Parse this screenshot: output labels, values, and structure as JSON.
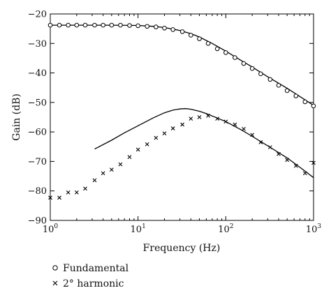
{
  "chart_data": {
    "type": "line",
    "title": "",
    "xlabel": "Frequency (Hz)",
    "ylabel": "Gain (dB)",
    "xscale": "log",
    "xlim": [
      1,
      1000
    ],
    "ylim": [
      -90,
      -20
    ],
    "grid": false,
    "legend_position": "bottom-left",
    "x_ticks": [
      {
        "value": 1,
        "base": "10",
        "exp": "0"
      },
      {
        "value": 10,
        "base": "10",
        "exp": "1"
      },
      {
        "value": 100,
        "base": "10",
        "exp": "2"
      },
      {
        "value": 1000,
        "base": "10",
        "exp": "3"
      }
    ],
    "y_ticks": [
      {
        "value": -20,
        "label": "−20"
      },
      {
        "value": -30,
        "label": "−30"
      },
      {
        "value": -40,
        "label": "−40"
      },
      {
        "value": -50,
        "label": "−50"
      },
      {
        "value": -60,
        "label": "−60"
      },
      {
        "value": -70,
        "label": "−70"
      },
      {
        "value": -80,
        "label": "−80"
      },
      {
        "value": -90,
        "label": "−90"
      }
    ],
    "lines": [
      {
        "role": "fundamental-model",
        "color": "#000000",
        "x": [
          1,
          2,
          5,
          10,
          15,
          20,
          30,
          40,
          50,
          70,
          100,
          150,
          200,
          300,
          500,
          700,
          1000
        ],
        "y": [
          -23.8,
          -23.8,
          -23.8,
          -23.9,
          -24.2,
          -24.6,
          -25.6,
          -26.7,
          -27.8,
          -30.0,
          -32.6,
          -35.8,
          -38.0,
          -41.3,
          -45.2,
          -48.0,
          -51.0
        ]
      },
      {
        "role": "harmonic-model",
        "color": "#000000",
        "x": [
          3.2,
          5,
          7,
          10,
          15,
          20,
          25,
          30,
          35,
          40,
          50,
          60,
          80,
          100,
          150,
          200,
          300,
          500,
          700,
          1000
        ],
        "y": [
          -65.8,
          -62.8,
          -60.3,
          -57.9,
          -55.2,
          -53.5,
          -52.6,
          -52.2,
          -52.1,
          -52.3,
          -53.0,
          -53.8,
          -55.3,
          -56.5,
          -59.3,
          -61.5,
          -64.7,
          -68.8,
          -72.0,
          -75.5
        ]
      }
    ],
    "series": [
      {
        "name": "Fundamental",
        "marker": "circle",
        "x": [
          1.0,
          1.27,
          1.6,
          2.0,
          2.5,
          3.2,
          4.0,
          5.0,
          6.3,
          8.0,
          10,
          12.7,
          16,
          20,
          25,
          32,
          40,
          50,
          63,
          80,
          100,
          127,
          160,
          200,
          250,
          320,
          400,
          500,
          630,
          800,
          1000
        ],
        "values": [
          -23.8,
          -23.8,
          -23.8,
          -23.8,
          -23.8,
          -23.8,
          -23.8,
          -23.8,
          -23.8,
          -23.9,
          -24.0,
          -24.2,
          -24.4,
          -24.8,
          -25.3,
          -26.0,
          -27.2,
          -28.4,
          -30.0,
          -31.8,
          -33.1,
          -34.8,
          -36.8,
          -38.5,
          -40.3,
          -42.2,
          -44.2,
          -46.0,
          -47.8,
          -49.8,
          -51.2
        ]
      },
      {
        "name": "2° harmonic",
        "marker": "cross",
        "x": [
          1.0,
          1.27,
          1.6,
          2.0,
          2.5,
          3.2,
          4.0,
          5.0,
          6.3,
          8.0,
          10,
          12.7,
          16,
          20,
          25,
          32,
          40,
          50,
          63,
          80,
          100,
          127,
          160,
          200,
          250,
          320,
          400,
          500,
          630,
          800,
          1000
        ],
        "values": [
          -82.3,
          -82.3,
          -80.5,
          -80.5,
          -79.2,
          -76.4,
          -74.0,
          -72.8,
          -71.0,
          -68.5,
          -66.0,
          -64.2,
          -62.0,
          -60.5,
          -58.8,
          -57.5,
          -55.5,
          -55.0,
          -54.5,
          -55.5,
          -56.5,
          -57.5,
          -59.0,
          -61.0,
          -63.5,
          -65.2,
          -67.5,
          -69.5,
          -71.5,
          -74.0,
          -70.5
        ]
      }
    ]
  }
}
